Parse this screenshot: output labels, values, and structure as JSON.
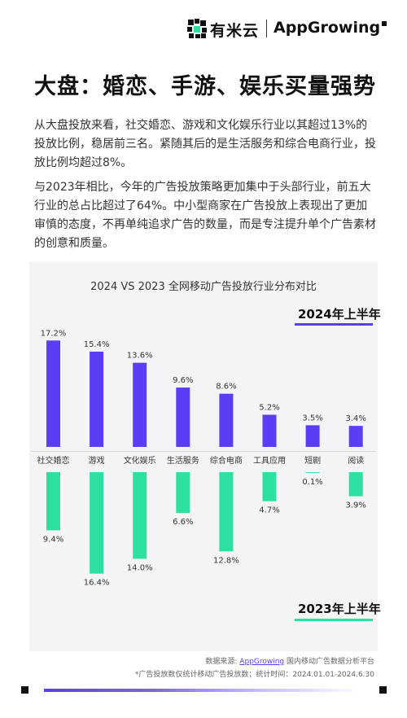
{
  "brand": {
    "name_cn": "有米云",
    "name_en": "AppGrowing"
  },
  "title": "大盘：婚恋、手游、娱乐买量强势",
  "paragraphs": [
    "从大盘投放来看，社交婚恋、游戏和文化娱乐行业以其超过13%的投放比例，稳居前三名。紧随其后的是生活服务和综合电商行业，投放比例均超过8%。",
    "与2023年相比，今年的广告投放策略更加集中于头部行业，前五大行业的总占比超过了64%。中小型商家在广告投放上表现出了更加审慎的态度，不再单纯追求广告的数量，而是专注提升单个广告素材的创意和质量。"
  ],
  "chart_data": {
    "type": "bar",
    "title": "2024 VS 2023 全网移动广告投放行业分布对比",
    "categories": [
      "社交婚恋",
      "游戏",
      "文化娱乐",
      "生活服务",
      "综合电商",
      "工具应用",
      "短剧",
      "阅读"
    ],
    "series": [
      {
        "name": "2024年上半年",
        "values": [
          17.2,
          15.4,
          13.6,
          9.6,
          8.6,
          5.2,
          3.5,
          3.4
        ],
        "color": "#5b3df5"
      },
      {
        "name": "2023年上半年",
        "values": [
          9.4,
          16.4,
          14.0,
          6.6,
          12.8,
          4.7,
          0.1,
          3.9
        ],
        "color": "#2ee0a0"
      }
    ],
    "value_suffix": "%",
    "layout": "mirrored (2024 above baseline, 2023 below)"
  },
  "source": {
    "prefix": "数据来源: ",
    "link": "AppGrowing",
    "suffix": " 国内移动广告数据分析平台"
  },
  "note": "*广告投放数仅统计移动广告投放数；统计时间：2024.01.01-2024.6.30"
}
